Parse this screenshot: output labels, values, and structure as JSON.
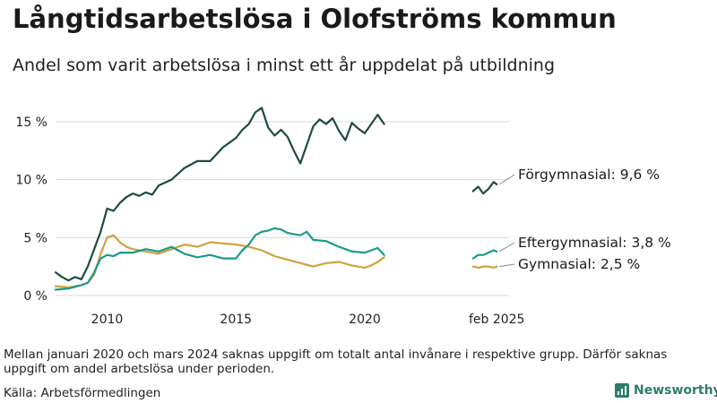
{
  "header": {
    "title": "Långtidsarbetslösa i Olofströms kommun",
    "subtitle": "Andel som varit arbetslösa i minst ett år uppdelat på utbildning"
  },
  "footer": {
    "note": "Mellan januari 2020 och mars 2024 saknas uppgift om totalt antal invånare i respektive grupp. Därför saknas uppgift om andel arbetslösa under perioden.",
    "source": "Källa: Arbetsförmedlingen",
    "brand": "Newsworthy"
  },
  "colors": {
    "forgymnasial": "#1f4a43",
    "eftergymnasial": "#1a9a8c",
    "gymnasial": "#d2a03e",
    "brand": "#2e7d6a",
    "grid": "#d9d9d9"
  },
  "icons": {
    "brand_logo": "newsworthy-logo-icon"
  },
  "chart_data": {
    "type": "line",
    "title": "Långtidsarbetslösa i Olofströms kommun",
    "subtitle": "Andel som varit arbetslösa i minst ett år uppdelat på utbildning",
    "xlabel": "",
    "ylabel": "",
    "x_ticks": [
      "2010",
      "2015",
      "2020",
      "feb 2025"
    ],
    "y_ticks": [
      "0 %",
      "5 %",
      "10 %",
      "15 %"
    ],
    "ylim": [
      0,
      17.5
    ],
    "grid": true,
    "legend": "inline labels at series end",
    "x_unit": "year",
    "series": [
      {
        "name": "Förgymnasial",
        "end_label": "Förgymnasial: 9,6 %",
        "segments": [
          {
            "x": [
              2008.0,
              2008.25,
              2008.5,
              2008.75,
              2009.0,
              2009.25,
              2009.5,
              2009.75,
              2010.0,
              2010.25,
              2010.5,
              2010.75,
              2011.0,
              2011.25,
              2011.5,
              2011.75,
              2012.0,
              2012.5,
              2013.0,
              2013.5,
              2014.0,
              2014.5,
              2015.0,
              2015.25,
              2015.5,
              2015.75,
              2016.0,
              2016.25,
              2016.5,
              2016.75,
              2017.0,
              2017.25,
              2017.5,
              2017.75,
              2018.0,
              2018.25,
              2018.5,
              2018.75,
              2019.0,
              2019.25,
              2019.5,
              2019.75,
              2020.0,
              2020.25,
              2020.5,
              2020.75
            ],
            "y": [
              2.0,
              1.6,
              1.3,
              1.6,
              1.4,
              2.5,
              4.0,
              5.5,
              7.5,
              7.3,
              8.0,
              8.5,
              8.8,
              8.6,
              8.9,
              8.7,
              9.5,
              10.0,
              11.0,
              11.6,
              11.6,
              12.8,
              13.6,
              14.3,
              14.8,
              15.8,
              16.2,
              14.5,
              13.8,
              14.3,
              13.7,
              12.5,
              11.4,
              13.0,
              14.6,
              15.2,
              14.8,
              15.3,
              14.2,
              13.4,
              14.9,
              14.4,
              14.0,
              14.8,
              15.6,
              14.8
            ]
          },
          {
            "x": [
              2024.2,
              2024.4,
              2024.6,
              2024.8,
              2025.0,
              2025.12
            ],
            "y": [
              9.0,
              9.4,
              8.8,
              9.2,
              9.8,
              9.6
            ]
          }
        ]
      },
      {
        "name": "Eftergymnasial",
        "end_label": "Eftergymnasial: 3,8 %",
        "segments": [
          {
            "x": [
              2008.0,
              2008.5,
              2009.0,
              2009.25,
              2009.5,
              2009.75,
              2010.0,
              2010.25,
              2010.5,
              2011.0,
              2011.5,
              2012.0,
              2012.5,
              2013.0,
              2013.5,
              2014.0,
              2014.5,
              2015.0,
              2015.25,
              2015.5,
              2015.75,
              2016.0,
              2016.25,
              2016.5,
              2016.75,
              2017.0,
              2017.25,
              2017.5,
              2017.75,
              2018.0,
              2018.5,
              2019.0,
              2019.5,
              2020.0,
              2020.25,
              2020.5,
              2020.75
            ],
            "y": [
              0.5,
              0.6,
              0.9,
              1.1,
              2.0,
              3.2,
              3.5,
              3.4,
              3.7,
              3.7,
              4.0,
              3.8,
              4.2,
              3.6,
              3.3,
              3.5,
              3.2,
              3.2,
              3.9,
              4.4,
              5.2,
              5.5,
              5.6,
              5.8,
              5.7,
              5.4,
              5.3,
              5.2,
              5.5,
              4.8,
              4.7,
              4.2,
              3.8,
              3.7,
              3.9,
              4.1,
              3.5
            ]
          },
          {
            "x": [
              2024.2,
              2024.4,
              2024.6,
              2024.8,
              2025.0,
              2025.12
            ],
            "y": [
              3.2,
              3.5,
              3.5,
              3.7,
              3.9,
              3.8
            ]
          }
        ]
      },
      {
        "name": "Gymnasial",
        "end_label": "Gymnasial: 2,5 %",
        "segments": [
          {
            "x": [
              2008.0,
              2008.5,
              2009.0,
              2009.25,
              2009.5,
              2009.75,
              2010.0,
              2010.25,
              2010.5,
              2010.75,
              2011.0,
              2011.5,
              2012.0,
              2012.5,
              2013.0,
              2013.5,
              2014.0,
              2014.5,
              2015.0,
              2015.5,
              2016.0,
              2016.5,
              2017.0,
              2017.5,
              2018.0,
              2018.5,
              2019.0,
              2019.5,
              2020.0,
              2020.25,
              2020.5,
              2020.75
            ],
            "y": [
              0.8,
              0.7,
              0.9,
              1.1,
              1.8,
              3.6,
              5.0,
              5.2,
              4.6,
              4.2,
              4.0,
              3.8,
              3.6,
              4.0,
              4.4,
              4.2,
              4.6,
              4.5,
              4.4,
              4.2,
              3.9,
              3.4,
              3.1,
              2.8,
              2.5,
              2.8,
              2.9,
              2.6,
              2.4,
              2.6,
              2.9,
              3.3
            ]
          },
          {
            "x": [
              2024.2,
              2024.4,
              2024.6,
              2024.8,
              2025.0,
              2025.12
            ],
            "y": [
              2.5,
              2.4,
              2.5,
              2.5,
              2.4,
              2.5
            ]
          }
        ]
      }
    ]
  }
}
